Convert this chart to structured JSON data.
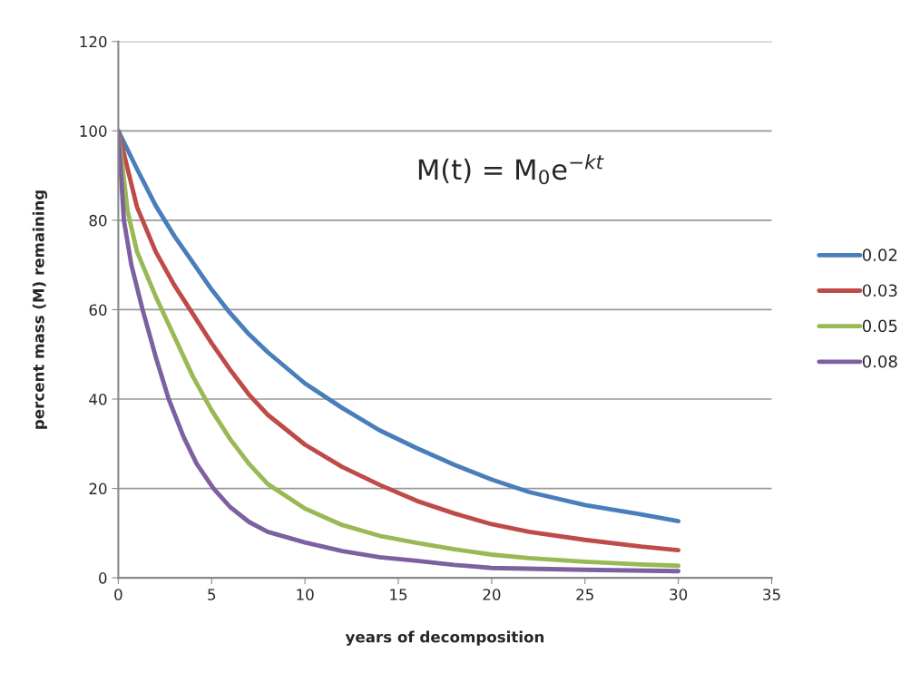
{
  "chart_data": {
    "type": "line",
    "xlabel": "years of decomposition",
    "ylabel": "percent mass (M) remaining",
    "annotations": [
      "M(t) = M$_{0}$e$^{−kt}$"
    ],
    "xlim": [
      0,
      35
    ],
    "xticks": [
      0,
      5,
      10,
      15,
      20,
      25,
      30,
      35
    ],
    "ylim": [
      0,
      120
    ],
    "yticks": [
      0,
      20,
      40,
      60,
      80,
      100,
      120
    ],
    "grid": "y",
    "legend": "right",
    "marker": "none",
    "line_style": "solid",
    "series": [
      {
        "name": "0.02",
        "color": "#4a7ebb",
        "x": [
          0,
          1,
          2,
          3,
          4,
          5,
          6,
          7,
          8,
          10,
          12,
          14,
          16,
          18,
          20,
          22,
          25,
          28,
          30
        ],
        "values": [
          100,
          91.5,
          83.3,
          76.5,
          70.5,
          64.5,
          59.2,
          54.5,
          50.5,
          43.5,
          38,
          33,
          29,
          25.3,
          22,
          19.2,
          16.3,
          14.2,
          12.7
        ]
      },
      {
        "name": "0.03",
        "color": "#be4b48",
        "x": [
          0,
          1,
          2,
          3,
          4,
          5,
          6,
          7,
          8,
          10,
          12,
          14,
          16,
          18,
          20,
          22,
          25,
          28,
          30
        ],
        "values": [
          100,
          83,
          73,
          65.5,
          59,
          52.5,
          46.5,
          41,
          36.5,
          29.8,
          24.8,
          20.8,
          17.2,
          14.4,
          12,
          10.3,
          8.5,
          7,
          6.2
        ]
      },
      {
        "name": "0.05",
        "color": "#98b954",
        "x": [
          0,
          0.5,
          1,
          2,
          3,
          4,
          5,
          6,
          7,
          8,
          10,
          12,
          14,
          16,
          18,
          20,
          22,
          25,
          28,
          30
        ],
        "values": [
          100,
          82,
          73,
          63,
          54,
          45,
          37.5,
          31,
          25.5,
          21,
          15.5,
          11.8,
          9.4,
          7.8,
          6.4,
          5.2,
          4.4,
          3.6,
          3,
          2.7
        ]
      },
      {
        "name": "0.08",
        "color": "#7d60a0",
        "x": [
          0,
          0.3,
          0.7,
          1.3,
          2,
          2.7,
          3.5,
          4.2,
          5.1,
          6,
          7,
          8,
          10,
          12,
          14,
          16,
          18,
          20,
          25,
          30
        ],
        "values": [
          100,
          80,
          70,
          60,
          49.5,
          40,
          31.5,
          25.5,
          20,
          15.8,
          12.5,
          10.3,
          7.9,
          6,
          4.6,
          3.8,
          2.9,
          2.2,
          1.8,
          1.5
        ]
      }
    ]
  }
}
